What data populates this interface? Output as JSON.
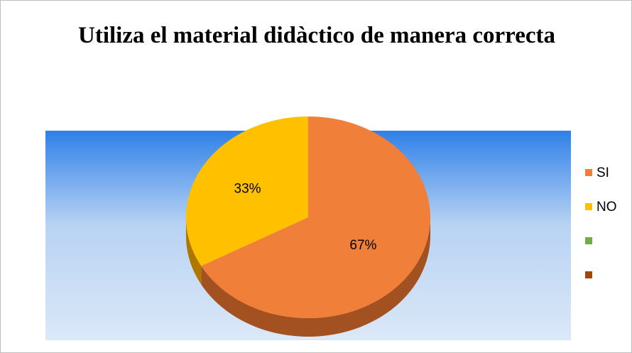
{
  "chart_data": {
    "type": "pie",
    "title": "Utiliza el material didàctico de manera correcta",
    "categories": [
      "SI",
      "NO",
      null,
      null
    ],
    "values": [
      67,
      33,
      0,
      0
    ],
    "value_labels": [
      "67%",
      "33%",
      null,
      null
    ],
    "colors": [
      "#f07f3a",
      "#ffc000",
      "#70ad47",
      "#9e480e"
    ],
    "legend": "right"
  }
}
